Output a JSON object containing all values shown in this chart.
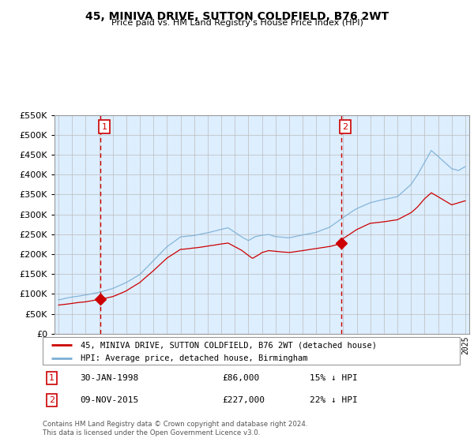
{
  "title": "45, MINIVA DRIVE, SUTTON COLDFIELD, B76 2WT",
  "subtitle": "Price paid vs. HM Land Registry's House Price Index (HPI)",
  "legend_line1": "45, MINIVA DRIVE, SUTTON COLDFIELD, B76 2WT (detached house)",
  "legend_line2": "HPI: Average price, detached house, Birmingham",
  "sale1_date": 1998.08,
  "sale1_price": 86000,
  "sale1_label": "1",
  "sale1_display": "30-JAN-1998",
  "sale1_text": "£86,000",
  "sale1_pct": "15% ↓ HPI",
  "sale2_date": 2015.85,
  "sale2_price": 227000,
  "sale2_label": "2",
  "sale2_display": "09-NOV-2015",
  "sale2_text": "£227,000",
  "sale2_pct": "22% ↓ HPI",
  "footer1": "Contains HM Land Registry data © Crown copyright and database right 2024.",
  "footer2": "This data is licensed under the Open Government Licence v3.0.",
  "line_red": "#cc0000",
  "line_blue": "#7bafd4",
  "fill_blue": "#ddeeff",
  "background": "#ffffff",
  "grid_color": "#cccccc",
  "ylim": [
    0,
    550000
  ],
  "yticks": [
    0,
    50000,
    100000,
    150000,
    200000,
    250000,
    300000,
    350000,
    400000,
    450000,
    500000,
    550000
  ],
  "xlim_start": 1994.7,
  "xlim_end": 2025.3
}
